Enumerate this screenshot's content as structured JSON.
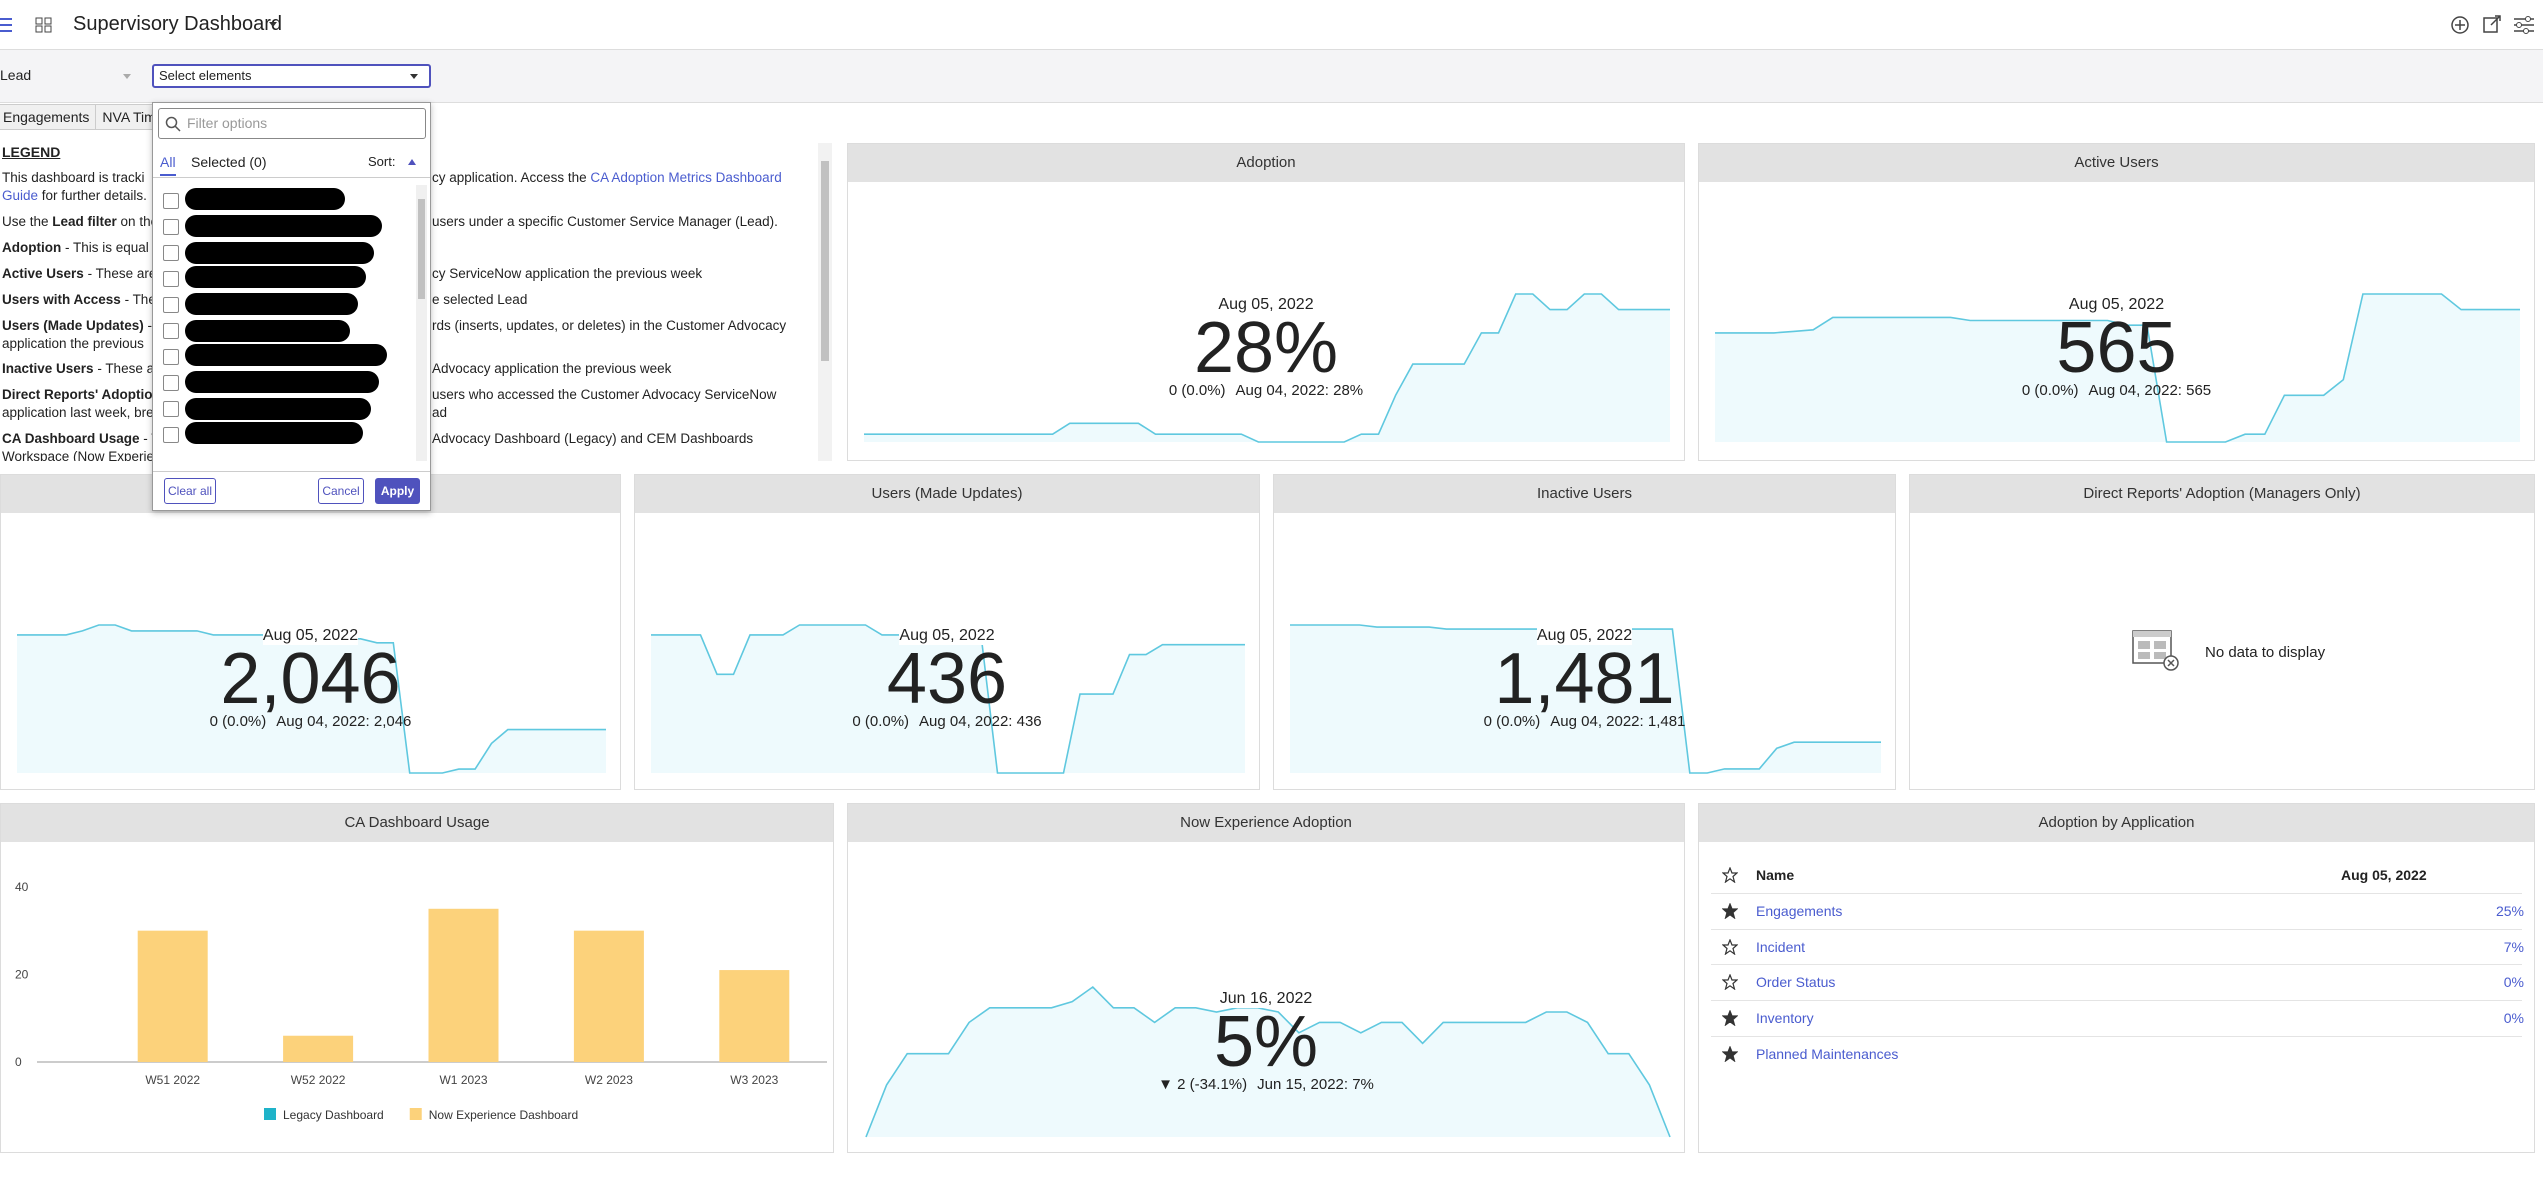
{
  "header": {
    "title": "Supervisory Dashboard"
  },
  "filter": {
    "label": "Lead",
    "placeholder": "Select elements"
  },
  "tabs": [
    "Engagements",
    "NVA Tim"
  ],
  "dropdown": {
    "search_placeholder": "Filter options",
    "tab_all": "All",
    "tab_selected": "Selected (0)",
    "sort": "Sort:",
    "clear": "Clear all",
    "cancel": "Cancel",
    "apply": "Apply"
  },
  "legend": {
    "title": "LEGEND",
    "lines": [
      {
        "left": [
          {
            "text": "This dashboard is tracki"
          }
        ],
        "right": [
          {
            "text": "cy application. Access the "
          },
          {
            "text": "CA Adoption Metrics Dashboard",
            "style": "link"
          }
        ]
      },
      {
        "left": [
          {
            "text": "Guide",
            "style": "link"
          },
          {
            "text": " for further details."
          }
        ]
      },
      {
        "left": [
          {
            "text": "Use the "
          },
          {
            "text": "Lead filter",
            "style": "bold"
          },
          {
            "text": " on the"
          }
        ],
        "right": [
          {
            "text": "users under a specific Customer Service Manager (Lead)."
          }
        ]
      },
      {
        "left": [
          {
            "text": "Adoption",
            "style": "bold"
          },
          {
            "text": " - This is equal t"
          }
        ]
      },
      {
        "left": [
          {
            "text": "Active Users",
            "style": "bold"
          },
          {
            "text": " - These are"
          }
        ],
        "right": [
          {
            "text": "cy ServiceNow application the previous week"
          }
        ]
      },
      {
        "left": [
          {
            "text": "Users with Access",
            "style": "bold"
          },
          {
            "text": " - The"
          }
        ],
        "right": [
          {
            "text": "e selected Lead"
          }
        ]
      },
      {
        "left": [
          {
            "text": "Users (Made Updates)",
            "style": "bold"
          },
          {
            "text": " -"
          }
        ],
        "right": [
          {
            "text": "rds (inserts, updates, or deletes) in the Customer Advocacy"
          }
        ]
      },
      {
        "left": [
          {
            "text": "application the previous"
          }
        ]
      },
      {
        "left": [
          {
            "text": "Inactive Users",
            "style": "bold"
          },
          {
            "text": " - These ar"
          }
        ],
        "right": [
          {
            "text": "Advocacy application the previous week"
          }
        ]
      },
      {
        "left": [
          {
            "text": "Direct Reports' Adoptio",
            "style": "bold"
          }
        ],
        "right": [
          {
            "text": "users who accessed the Customer Advocacy ServiceNow"
          }
        ]
      },
      {
        "left": [
          {
            "text": "application last week, bre"
          }
        ],
        "right": [
          {
            "text": "ad"
          }
        ]
      },
      {
        "left": [
          {
            "text": "CA Dashboard Usage",
            "style": "bold"
          },
          {
            "text": " - T"
          }
        ],
        "right": [
          {
            "text": "Advocacy Dashboard (Legacy) and CEM Dashboards"
          }
        ]
      },
      {
        "left": [
          {
            "text": "Workspace (Now Experien"
          }
        ]
      }
    ]
  },
  "metrics": [
    {
      "title": "Adoption",
      "date": "Aug 05, 2022",
      "value": "28%",
      "change": "0 (0.0%)",
      "compare": "Aug 04, 2022: 28%",
      "trend": [
        5,
        5,
        5,
        5,
        5,
        5,
        5,
        5,
        5,
        5,
        5,
        5,
        12,
        12,
        12,
        12,
        12,
        5,
        5,
        5,
        5,
        5,
        5,
        0,
        0,
        0,
        0,
        0,
        0,
        5,
        5,
        30,
        50,
        50,
        50,
        50,
        70,
        70,
        95,
        95,
        85,
        85,
        95,
        95,
        85,
        85,
        85,
        85
      ]
    },
    {
      "title": "Active Users",
      "date": "Aug 05, 2022",
      "value": "565",
      "change": "0 (0.0%)",
      "compare": "Aug 04, 2022: 565",
      "trend": [
        70,
        70,
        70,
        70,
        71,
        72,
        80,
        80,
        80,
        80,
        80,
        80,
        80,
        78,
        78,
        78,
        78,
        78,
        78,
        78,
        78,
        75,
        75,
        0,
        0,
        0,
        0,
        5,
        5,
        30,
        30,
        30,
        40,
        95,
        95,
        95,
        95,
        95,
        85,
        85,
        85,
        85
      ]
    },
    {
      "date": "Aug 05, 2022",
      "value": "2,046",
      "change": "0 (0.0%)",
      "compare": "Aug 04, 2022: 2,046",
      "trend": [
        70,
        70,
        70,
        70,
        72,
        75,
        75,
        72,
        72,
        72,
        72,
        72,
        70,
        70,
        70,
        70,
        70,
        70,
        70,
        70,
        68,
        68,
        66,
        66,
        0,
        0,
        0,
        2,
        2,
        15,
        22,
        22,
        22,
        22,
        22,
        22,
        22
      ]
    },
    {
      "title": "Users (Made Updates)",
      "date": "Aug 05, 2022",
      "value": "436",
      "change": "0 (0.0%)",
      "compare": "Aug 04, 2022: 436",
      "trend": [
        70,
        70,
        70,
        70,
        50,
        50,
        70,
        70,
        70,
        75,
        75,
        75,
        75,
        75,
        70,
        70,
        70,
        70,
        70,
        70,
        70,
        0,
        0,
        0,
        0,
        0,
        40,
        40,
        40,
        60,
        60,
        65,
        65,
        65,
        65,
        65,
        65
      ]
    },
    {
      "title": "Inactive Users",
      "date": "Aug 05, 2022",
      "value": "1,481",
      "change": "0 (0.0%)",
      "compare": "Aug 04, 2022: 1,481",
      "trend": [
        72,
        72,
        72,
        72,
        72,
        71,
        71,
        71,
        71,
        70,
        70,
        70,
        70,
        70,
        70,
        70,
        70,
        70,
        70,
        70,
        70,
        70,
        70,
        0,
        0,
        2,
        2,
        2,
        12,
        15,
        15,
        15,
        15,
        15,
        15
      ]
    }
  ],
  "no_data": {
    "title": "Direct Reports' Adoption (Managers Only)",
    "message": "No data to display"
  },
  "now_experience": {
    "title": "Now Experience Adoption",
    "date": "Jun 16, 2022",
    "value": "5%",
    "change": "▼ 2 (-34.1%)",
    "compare": "Jun 15, 2022: 7%",
    "trend": [
      0,
      25,
      40,
      40,
      40,
      55,
      62,
      62,
      62,
      62,
      65,
      72,
      62,
      62,
      55,
      62,
      62,
      60,
      62,
      62,
      60,
      50,
      55,
      55,
      50,
      55,
      55,
      45,
      55,
      55,
      55,
      55,
      55,
      60,
      60,
      55,
      40,
      40,
      25,
      0
    ]
  },
  "chart_data": {
    "type": "bar",
    "title": "CA Dashboard Usage",
    "categories": [
      "W51 2022",
      "W52 2022",
      "W1 2023",
      "W2 2023",
      "W3 2023"
    ],
    "series": [
      {
        "name": "Legacy Dashboard",
        "color": "#1fb3c9",
        "values": [
          0,
          0,
          0,
          0,
          0
        ]
      },
      {
        "name": "Now Experience Dashboard",
        "color": "#fcd27b",
        "values": [
          30,
          6,
          35,
          30,
          21
        ]
      }
    ],
    "ylim": [
      0,
      45
    ],
    "yticks": [
      0,
      20,
      40
    ]
  },
  "table": {
    "title": "Adoption by Application",
    "header": [
      "Name",
      "Aug 05, 2022"
    ],
    "rows": [
      {
        "name": "Engagements",
        "value": "25%",
        "starred": true
      },
      {
        "name": "Incident",
        "value": "7%",
        "starred": false
      },
      {
        "name": "Order Status",
        "value": "0%",
        "starred": false
      },
      {
        "name": "Inventory",
        "value": "0%",
        "starred": true
      },
      {
        "name": "Planned Maintenances",
        "starred": true
      }
    ]
  }
}
